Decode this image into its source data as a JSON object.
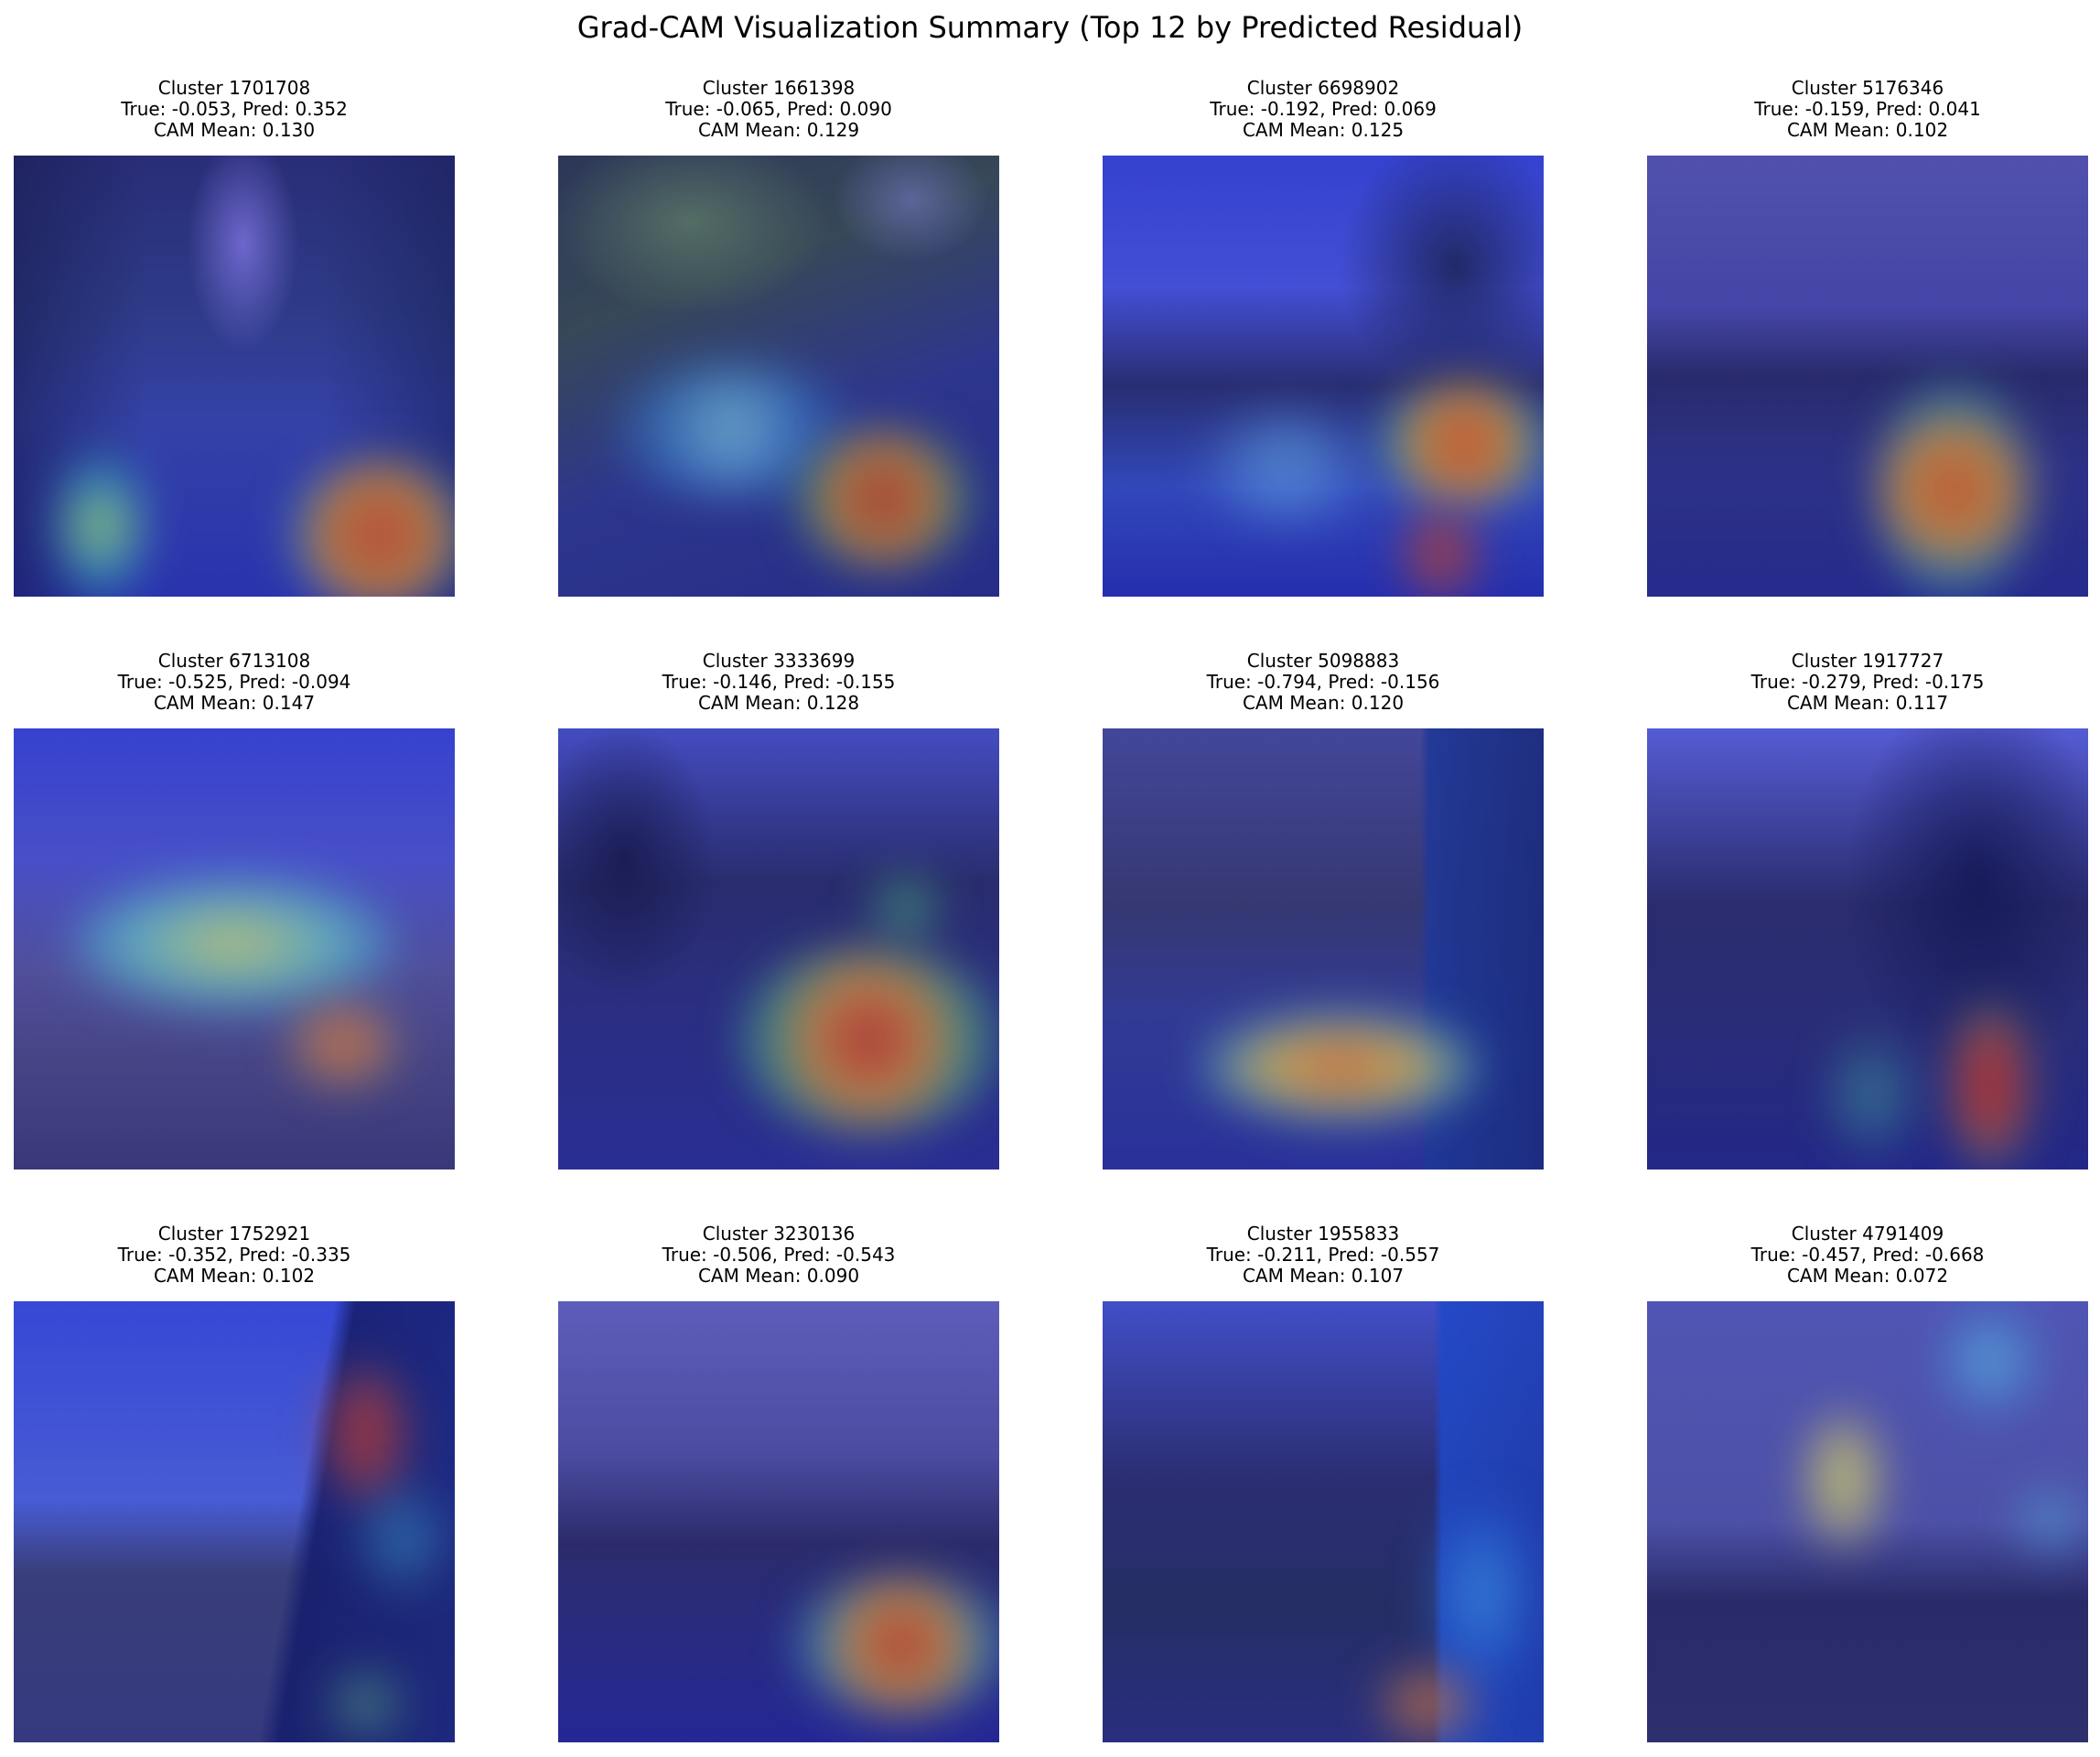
{
  "figure": {
    "title": "Grad-CAM Visualization Summary (Top 12 by Predicted Residual)"
  },
  "panels": [
    {
      "cluster": "Cluster 1701708",
      "values": "True: -0.053, Pred: 0.352",
      "cam": "CAM Mean: 0.130"
    },
    {
      "cluster": "Cluster 1661398",
      "values": "True: -0.065, Pred: 0.090",
      "cam": "CAM Mean: 0.129"
    },
    {
      "cluster": "Cluster 6698902",
      "values": "True: -0.192, Pred: 0.069",
      "cam": "CAM Mean: 0.125"
    },
    {
      "cluster": "Cluster 5176346",
      "values": "True: -0.159, Pred: 0.041",
      "cam": "CAM Mean: 0.102"
    },
    {
      "cluster": "Cluster 6713108",
      "values": "True: -0.525, Pred: -0.094",
      "cam": "CAM Mean: 0.147"
    },
    {
      "cluster": "Cluster 3333699",
      "values": "True: -0.146, Pred: -0.155",
      "cam": "CAM Mean: 0.128"
    },
    {
      "cluster": "Cluster 5098883",
      "values": "True: -0.794, Pred: -0.156",
      "cam": "CAM Mean: 0.120"
    },
    {
      "cluster": "Cluster 1917727",
      "values": "True: -0.279, Pred: -0.175",
      "cam": "CAM Mean: 0.117"
    },
    {
      "cluster": "Cluster 1752921",
      "values": "True: -0.352, Pred: -0.335",
      "cam": "CAM Mean: 0.102"
    },
    {
      "cluster": "Cluster 3230136",
      "values": "True: -0.506, Pred: -0.543",
      "cam": "CAM Mean: 0.090"
    },
    {
      "cluster": "Cluster 1955833",
      "values": "True: -0.211, Pred: -0.557",
      "cam": "CAM Mean: 0.107"
    },
    {
      "cluster": "Cluster 4791409",
      "values": "True: -0.457, Pred: -0.668",
      "cam": "CAM Mean: 0.072"
    }
  ]
}
